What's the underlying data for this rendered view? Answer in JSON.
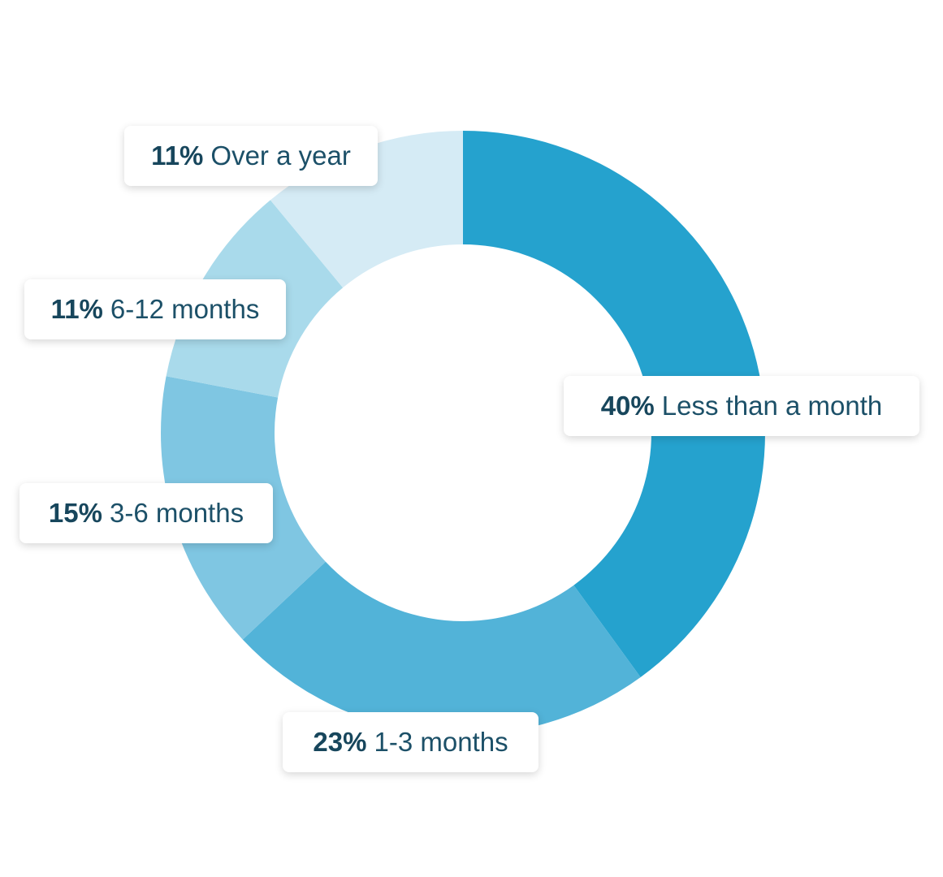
{
  "chart_data": {
    "type": "pie",
    "donut": true,
    "categories": [
      "Less than a month",
      "1-3 months",
      "3-6 months",
      "6-12 months",
      "Over a year"
    ],
    "values": [
      40,
      23,
      15,
      11,
      11
    ],
    "labels": [
      "40%",
      "23%",
      "15%",
      "11%",
      "11%"
    ],
    "colors": [
      "#25a2ce",
      "#52b3d8",
      "#7fc6e2",
      "#a9daeb",
      "#d5ebf5"
    ]
  }
}
